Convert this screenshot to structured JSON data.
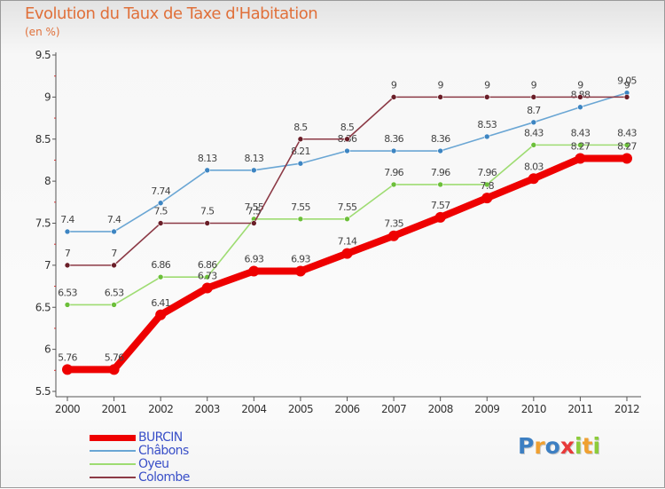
{
  "chart_data": {
    "type": "line",
    "title": "Evolution du Taux de Taxe d'Habitation",
    "subtitle": "(en %)",
    "x": [
      "2000",
      "2001",
      "2002",
      "2003",
      "2004",
      "2005",
      "2006",
      "2007",
      "2008",
      "2009",
      "2010",
      "2011",
      "2012"
    ],
    "ylim": [
      5.5,
      9.5
    ],
    "yticks": [
      5.5,
      6,
      6.5,
      7,
      7.5,
      8,
      8.5,
      9,
      9.5
    ],
    "ytick_labels": [
      "5.5",
      "6",
      "6.5",
      "7",
      "7.5",
      "8",
      "8.5",
      "9",
      "9.5"
    ],
    "grid": false,
    "legend_position": "bottom-left",
    "series": [
      {
        "name": "Châbons",
        "color": "#6aa6d4",
        "marker_color": "#3d85c2",
        "values": [
          7.4,
          7.4,
          7.74,
          8.13,
          8.13,
          8.21,
          8.36,
          8.36,
          8.36,
          8.53,
          8.7,
          8.88,
          9.05
        ],
        "labels": [
          "7.4",
          "7.4",
          "7.74",
          "8.13",
          "8.13",
          "8.21",
          "8.36",
          "8.36",
          "8.36",
          "8.53",
          "8.7",
          "8.88",
          "9.05"
        ]
      },
      {
        "name": "Oyeu",
        "color": "#9edc72",
        "marker_color": "#6cbf3a",
        "values": [
          6.53,
          6.53,
          6.86,
          6.86,
          7.55,
          7.55,
          7.55,
          7.96,
          7.96,
          7.96,
          8.43,
          8.43,
          8.43
        ],
        "labels": [
          "6.53",
          "6.53",
          "6.86",
          "6.86",
          "7.55",
          "7.55",
          "7.55",
          "7.96",
          "7.96",
          "7.96",
          "8.43",
          "8.43",
          "8.43"
        ]
      },
      {
        "name": "Colombe",
        "color": "#8c3a46",
        "marker_color": "#6a1e28",
        "values": [
          7,
          7,
          7.5,
          7.5,
          7.5,
          8.5,
          8.5,
          9,
          9,
          9,
          9,
          9,
          9
        ],
        "labels": [
          "7",
          "7",
          "7.5",
          "7.5",
          "7.5",
          "8.5",
          "8.5",
          "9",
          "9",
          "9",
          "9",
          "9",
          "9"
        ]
      },
      {
        "name": "BURCIN",
        "color": "#ee0000",
        "marker_color": "#ee0000",
        "values": [
          5.76,
          5.76,
          6.41,
          6.73,
          6.93,
          6.93,
          7.14,
          7.35,
          7.57,
          7.8,
          8.03,
          8.27,
          8.27
        ],
        "labels": [
          "5.76",
          "5.76",
          "6.41",
          "6.73",
          "6.93",
          "6.93",
          "7.14",
          "7.35",
          "7.57",
          "7.8",
          "8.03",
          "8.27",
          "8.27"
        ]
      }
    ],
    "legend": [
      {
        "name": "BURCIN",
        "color": "#ee0000",
        "thickness": 7
      },
      {
        "name": "Châbons",
        "color": "#6aa6d4",
        "thickness": 2
      },
      {
        "name": "Oyeu",
        "color": "#9edc72",
        "thickness": 2
      },
      {
        "name": "Colombe",
        "color": "#8c3a46",
        "thickness": 2
      }
    ]
  },
  "logo": {
    "letters": [
      "P",
      "r",
      "o",
      "x",
      "i",
      "t",
      "i"
    ],
    "colors": [
      "#3d7fc2",
      "#f0a030",
      "#3d7fc2",
      "#e83a3a",
      "#8ccc3a",
      "#f0a030",
      "#8ccc3a"
    ]
  }
}
